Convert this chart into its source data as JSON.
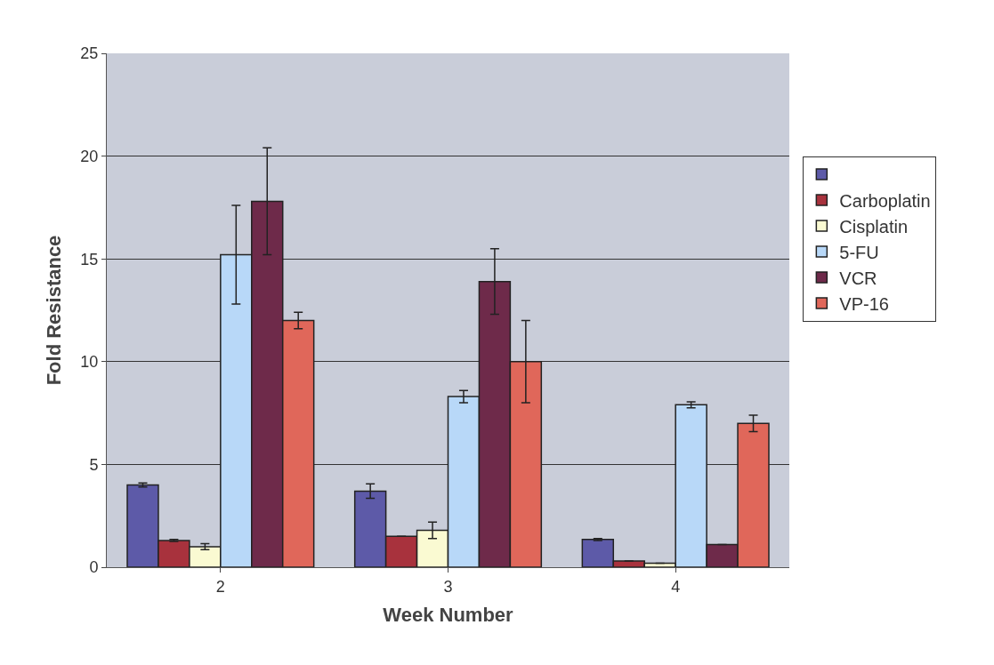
{
  "chart_data": {
    "type": "bar",
    "xlabel": "Week Number",
    "ylabel": "Fold Resistance",
    "categories": [
      "2",
      "3",
      "4"
    ],
    "series": [
      {
        "color": "#5d5aa8",
        "values": [
          4.0,
          3.7,
          1.35
        ],
        "errors": [
          0.1,
          0.35,
          0.05
        ]
      },
      {
        "name": "Carboplatin",
        "color": "#a8323d",
        "values": [
          1.3,
          1.5,
          0.3
        ],
        "errors": [
          0.05,
          null,
          null
        ]
      },
      {
        "name": "Cisplatin",
        "color": "#fafad2",
        "values": [
          1.0,
          1.8,
          0.2
        ],
        "errors": [
          0.15,
          0.4,
          null
        ]
      },
      {
        "name": "5-FU",
        "color": "#b8d8f8",
        "values": [
          15.2,
          8.3,
          7.9
        ],
        "errors": [
          2.4,
          0.3,
          0.15
        ]
      },
      {
        "name": "VCR",
        "color": "#6e2a4a",
        "values": [
          17.8,
          13.9,
          1.1
        ],
        "errors": [
          2.6,
          1.6,
          null
        ]
      },
      {
        "name": "VP-16",
        "color": "#e0675a",
        "values": [
          12.0,
          10.0,
          7.0
        ],
        "errors": [
          0.4,
          2.0,
          0.4
        ]
      }
    ],
    "ylim": [
      0,
      25
    ],
    "yticks": [
      0,
      5,
      10,
      15,
      20,
      25
    ],
    "grid": "y",
    "legend": "right"
  }
}
